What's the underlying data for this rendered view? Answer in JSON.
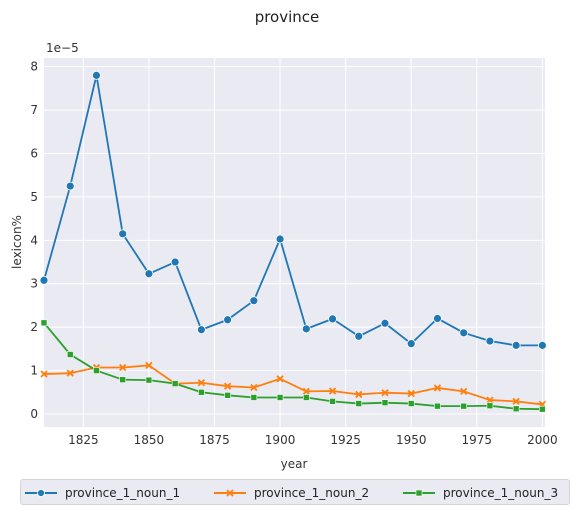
{
  "chart_data": {
    "type": "line",
    "title": "province",
    "xlabel": "year",
    "ylabel": "lexicon%",
    "y_offset_label": "1e−5",
    "x": [
      1810,
      1820,
      1830,
      1840,
      1850,
      1860,
      1870,
      1880,
      1890,
      1900,
      1910,
      1920,
      1930,
      1940,
      1950,
      1960,
      1970,
      1980,
      1990,
      2000
    ],
    "xlim": [
      1810,
      2001
    ],
    "ylim": [
      -0.3,
      8.2
    ],
    "x_ticks": [
      1825,
      1850,
      1875,
      1900,
      1925,
      1950,
      1975,
      2000
    ],
    "y_ticks": [
      0,
      1,
      2,
      3,
      4,
      5,
      6,
      7,
      8
    ],
    "grid": true,
    "legend_position": "bottom",
    "series": [
      {
        "name": "province_1_noun_1",
        "color": "#1f77b4",
        "marker": "circle",
        "values": [
          3.08,
          5.25,
          7.8,
          4.15,
          3.23,
          3.5,
          1.94,
          2.17,
          2.61,
          4.03,
          1.96,
          2.19,
          1.79,
          2.09,
          1.62,
          2.2,
          1.87,
          1.68,
          1.58,
          1.58
        ]
      },
      {
        "name": "province_1_noun_2",
        "color": "#ff7f0e",
        "marker": "x",
        "values": [
          0.92,
          0.94,
          1.07,
          1.07,
          1.12,
          0.7,
          0.72,
          0.64,
          0.61,
          0.81,
          0.52,
          0.53,
          0.45,
          0.49,
          0.47,
          0.6,
          0.52,
          0.32,
          0.29,
          0.22
        ]
      },
      {
        "name": "province_1_noun_3",
        "color": "#2ca02c",
        "marker": "square",
        "values": [
          2.1,
          1.37,
          1.0,
          0.79,
          0.78,
          0.7,
          0.5,
          0.43,
          0.38,
          0.38,
          0.38,
          0.29,
          0.24,
          0.26,
          0.24,
          0.18,
          0.18,
          0.19,
          0.12,
          0.11
        ]
      }
    ]
  }
}
